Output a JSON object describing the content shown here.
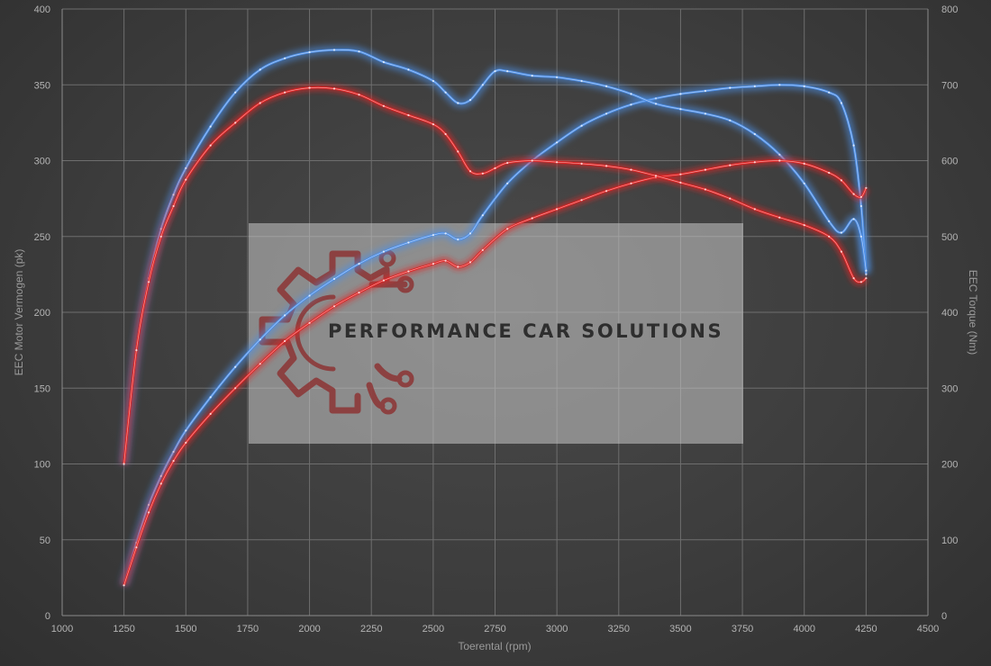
{
  "chart_data": {
    "type": "line",
    "title": "",
    "xlabel": "Toerental (rpm)",
    "ylabel_left": "EEC Motor Vermogen (pk)",
    "ylabel_right": "EEC Torque (Nm)",
    "xlim": [
      1000,
      4500
    ],
    "ylim_left": [
      0,
      400
    ],
    "ylim_right": [
      0,
      800
    ],
    "x_ticks": [
      1000,
      1250,
      1500,
      1750,
      2000,
      2250,
      2500,
      2750,
      3000,
      3250,
      3500,
      3750,
      4000,
      4250,
      4500
    ],
    "y_left_ticks": [
      0,
      50,
      100,
      150,
      200,
      250,
      300,
      350,
      400
    ],
    "y_right_ticks": [
      0,
      100,
      200,
      300,
      400,
      500,
      600,
      700,
      800
    ],
    "grid": true,
    "legend": "none",
    "watermark": "PERFORMANCE CAR SOLUTIONS",
    "colors": {
      "tuned": "#4d8fe8",
      "stock": "#e02424",
      "background": "#3d3d3d"
    },
    "series": [
      {
        "axis": "left",
        "color": "#4d8fe8",
        "x": [
          1250,
          1300,
          1350,
          1400,
          1450,
          1500,
          1600,
          1700,
          1800,
          1900,
          2000,
          2100,
          2200,
          2300,
          2400,
          2500,
          2550,
          2600,
          2650,
          2700,
          2800,
          2900,
          3000,
          3100,
          3200,
          3300,
          3400,
          3500,
          3600,
          3700,
          3800,
          3900,
          4000,
          4100,
          4150,
          4200,
          4230,
          4250
        ],
        "values": [
          20,
          48,
          73,
          92,
          108,
          122,
          144,
          164,
          182,
          198,
          211,
          222,
          232,
          240,
          246,
          251,
          252,
          248,
          252,
          264,
          285,
          300,
          312,
          323,
          331,
          337,
          341,
          344,
          346,
          348,
          349,
          350,
          349,
          345,
          338,
          310,
          270,
          225
        ]
      },
      {
        "axis": "left",
        "color": "#e02424",
        "x": [
          1250,
          1300,
          1350,
          1400,
          1450,
          1500,
          1600,
          1700,
          1800,
          1900,
          2000,
          2100,
          2200,
          2300,
          2400,
          2500,
          2550,
          2600,
          2650,
          2700,
          2800,
          2900,
          3000,
          3100,
          3200,
          3300,
          3400,
          3500,
          3600,
          3700,
          3800,
          3900,
          4000,
          4100,
          4150,
          4200,
          4230,
          4250
        ],
        "values": [
          20,
          45,
          68,
          87,
          102,
          114,
          133,
          150,
          166,
          181,
          193,
          204,
          213,
          221,
          227,
          232,
          234,
          230,
          233,
          241,
          255,
          262,
          268,
          274,
          280,
          285,
          289,
          291,
          294,
          297,
          299,
          300,
          298,
          292,
          287,
          278,
          276,
          282
        ]
      },
      {
        "axis": "right",
        "color": "#4d8fe8",
        "x": [
          1250,
          1300,
          1350,
          1400,
          1450,
          1500,
          1600,
          1700,
          1800,
          1900,
          2000,
          2100,
          2200,
          2300,
          2400,
          2500,
          2550,
          2600,
          2650,
          2700,
          2750,
          2800,
          2900,
          3000,
          3100,
          3200,
          3300,
          3400,
          3500,
          3600,
          3700,
          3800,
          3900,
          4000,
          4100,
          4150,
          4200,
          4230,
          4250
        ],
        "values": [
          200,
          350,
          445,
          510,
          555,
          590,
          645,
          690,
          720,
          735,
          743,
          746,
          744,
          730,
          720,
          705,
          690,
          676,
          680,
          700,
          718,
          718,
          712,
          710,
          705,
          698,
          688,
          675,
          668,
          662,
          653,
          635,
          608,
          570,
          520,
          505,
          523,
          500,
          455
        ]
      },
      {
        "axis": "right",
        "color": "#e02424",
        "x": [
          1250,
          1300,
          1350,
          1400,
          1450,
          1500,
          1600,
          1700,
          1800,
          1900,
          2000,
          2100,
          2200,
          2300,
          2400,
          2500,
          2550,
          2600,
          2650,
          2700,
          2750,
          2800,
          2900,
          3000,
          3100,
          3200,
          3300,
          3400,
          3500,
          3600,
          3700,
          3800,
          3900,
          4000,
          4100,
          4150,
          4200,
          4230,
          4250
        ],
        "values": [
          200,
          350,
          440,
          500,
          540,
          575,
          620,
          650,
          676,
          690,
          696,
          695,
          687,
          672,
          660,
          648,
          635,
          612,
          586,
          583,
          590,
          597,
          600,
          598,
          596,
          593,
          588,
          580,
          571,
          562,
          550,
          536,
          525,
          515,
          500,
          480,
          445,
          440,
          445
        ]
      }
    ]
  }
}
